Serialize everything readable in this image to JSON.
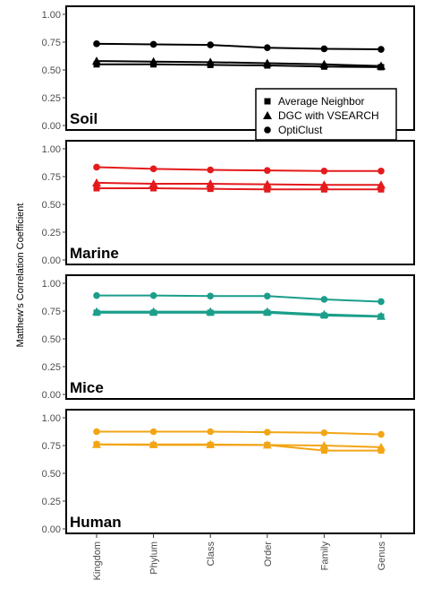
{
  "chart_data": {
    "type": "line",
    "ylabel": "Matthew's Correlation Coefficient",
    "categories": [
      "Kingdom",
      "Phylum",
      "Class",
      "Order",
      "Family",
      "Genus"
    ],
    "ylim": [
      0,
      1
    ],
    "yticks": [
      "0.00",
      "0.25",
      "0.50",
      "0.75",
      "1.00"
    ],
    "legend": {
      "placement": "bottom-right of Soil panel",
      "entries": [
        {
          "name": "Average Neighbor",
          "marker": "square"
        },
        {
          "name": "DGC with VSEARCH",
          "marker": "triangle"
        },
        {
          "name": "OptiClust",
          "marker": "circle"
        }
      ]
    },
    "panels": [
      {
        "name": "Soil",
        "color": "#000000",
        "series": [
          {
            "name": "Average Neighbor",
            "values": [
              0.55,
              0.55,
              0.545,
              0.54,
              0.53,
              0.525
            ]
          },
          {
            "name": "DGC with VSEARCH",
            "values": [
              0.58,
              0.575,
              0.57,
              0.56,
              0.55,
              0.535
            ]
          },
          {
            "name": "OptiClust",
            "values": [
              0.735,
              0.73,
              0.725,
              0.7,
              0.69,
              0.685
            ]
          }
        ]
      },
      {
        "name": "Marine",
        "color": "#e41a1c",
        "series": [
          {
            "name": "Average Neighbor",
            "values": [
              0.645,
              0.645,
              0.64,
              0.635,
              0.635,
              0.635
            ]
          },
          {
            "name": "DGC with VSEARCH",
            "values": [
              0.695,
              0.685,
              0.685,
              0.68,
              0.675,
              0.675
            ]
          },
          {
            "name": "OptiClust",
            "values": [
              0.835,
              0.82,
              0.81,
              0.805,
              0.8,
              0.8
            ]
          }
        ]
      },
      {
        "name": "Mice",
        "color": "#1b9e8a",
        "series": [
          {
            "name": "Average Neighbor",
            "values": [
              0.735,
              0.735,
              0.735,
              0.735,
              0.71,
              0.7
            ]
          },
          {
            "name": "DGC with VSEARCH",
            "values": [
              0.745,
              0.745,
              0.745,
              0.745,
              0.72,
              0.705
            ]
          },
          {
            "name": "OptiClust",
            "values": [
              0.89,
              0.89,
              0.885,
              0.885,
              0.855,
              0.835
            ]
          }
        ]
      },
      {
        "name": "Human",
        "color": "#f2a515",
        "series": [
          {
            "name": "Average Neighbor",
            "values": [
              0.76,
              0.755,
              0.755,
              0.755,
              0.705,
              0.705
            ]
          },
          {
            "name": "DGC with VSEARCH",
            "values": [
              0.76,
              0.76,
              0.76,
              0.755,
              0.75,
              0.735
            ]
          },
          {
            "name": "OptiClust",
            "values": [
              0.875,
              0.875,
              0.875,
              0.87,
              0.865,
              0.85
            ]
          }
        ]
      }
    ]
  }
}
